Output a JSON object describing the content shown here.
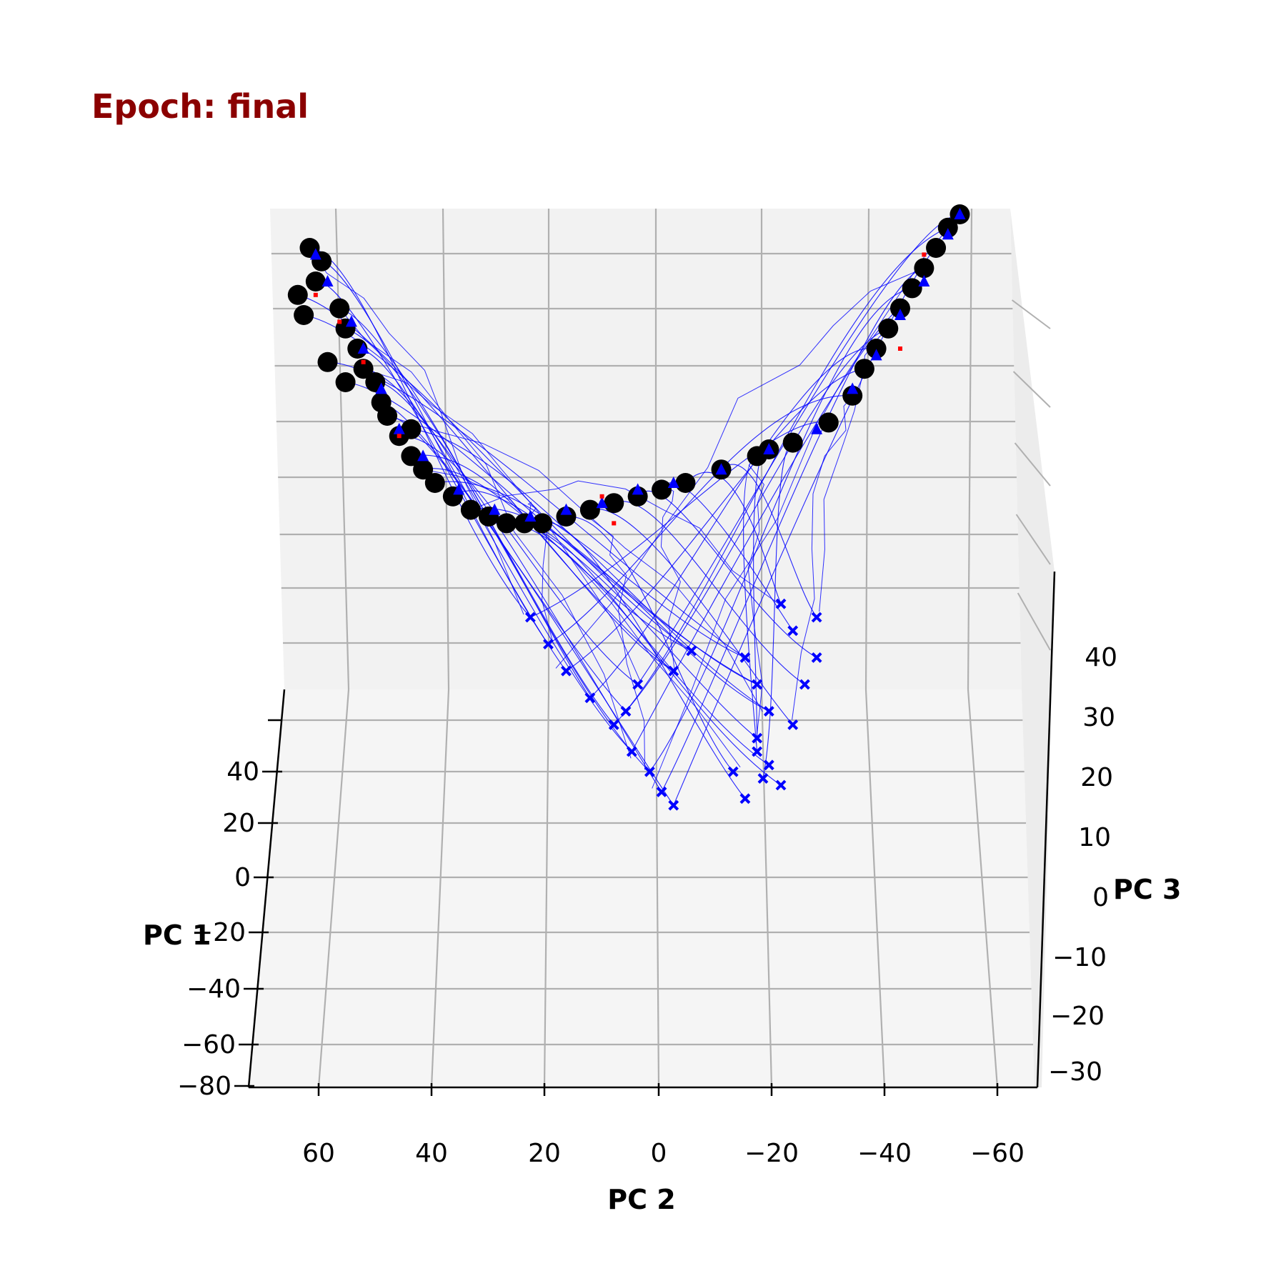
{
  "chart_data": {
    "type": "scatter",
    "title": "Epoch: final",
    "xlabel": "PC 2",
    "ylabel": "PC 1",
    "zlabel": "PC 3",
    "x_ticks": [
      "60",
      "40",
      "20",
      "0",
      "−20",
      "−40",
      "−60"
    ],
    "y_ticks": [
      "40",
      "20",
      "0",
      "−20",
      "−40",
      "−60",
      "−80"
    ],
    "z_ticks": [
      "40",
      "30",
      "20",
      "10",
      "0",
      "−10",
      "−20",
      "−30"
    ],
    "xlim": [
      65,
      -67
    ],
    "ylim": [
      -80,
      50
    ],
    "zlim": [
      -30,
      45
    ],
    "grid": true,
    "colors": {
      "title": "#8b0000",
      "trajectory": "#0000ff",
      "state_marker": "#000000",
      "triangle_marker": "#0000ff",
      "x_marker": "#0000ff",
      "red_marker": "#ff0000",
      "pane": "#f2f2f2",
      "grid": "#b0b0b0"
    },
    "series": [
      {
        "marker": "circle",
        "color": "#000000",
        "points": [
          [
            55,
            45
          ],
          [
            53,
            43
          ],
          [
            54,
            40
          ],
          [
            50,
            36
          ],
          [
            49,
            33
          ],
          [
            47,
            30
          ],
          [
            46,
            27
          ],
          [
            44,
            25
          ],
          [
            43,
            22
          ],
          [
            42,
            20
          ],
          [
            40,
            17
          ],
          [
            38,
            14
          ],
          [
            36,
            12
          ],
          [
            34,
            10
          ],
          [
            31,
            8
          ],
          [
            28,
            6
          ],
          [
            25,
            5
          ],
          [
            22,
            4
          ],
          [
            19,
            4
          ],
          [
            16,
            4
          ],
          [
            12,
            5
          ],
          [
            8,
            6
          ],
          [
            4,
            7
          ],
          [
            0,
            8
          ],
          [
            -4,
            9
          ],
          [
            -8,
            10
          ],
          [
            -14,
            12
          ],
          [
            -20,
            14
          ],
          [
            -26,
            16
          ],
          [
            -32,
            19
          ],
          [
            -36,
            23
          ],
          [
            -38,
            27
          ],
          [
            -40,
            30
          ],
          [
            -42,
            33
          ],
          [
            -44,
            36
          ],
          [
            -46,
            39
          ],
          [
            -48,
            42
          ],
          [
            -50,
            45
          ],
          [
            -52,
            48
          ],
          [
            -54,
            50
          ],
          [
            57,
            38
          ],
          [
            56,
            35
          ],
          [
            52,
            28
          ],
          [
            49,
            25
          ],
          [
            38,
            18
          ],
          [
            -22,
            15
          ]
        ]
      },
      {
        "marker": "triangle",
        "color": "#0000ff",
        "points": [
          [
            54,
            44
          ],
          [
            52,
            40
          ],
          [
            48,
            34
          ],
          [
            46,
            30
          ],
          [
            43,
            24
          ],
          [
            40,
            18
          ],
          [
            36,
            14
          ],
          [
            30,
            9
          ],
          [
            24,
            6
          ],
          [
            18,
            5
          ],
          [
            12,
            6
          ],
          [
            6,
            7
          ],
          [
            0,
            9
          ],
          [
            -6,
            10
          ],
          [
            -14,
            12
          ],
          [
            -22,
            15
          ],
          [
            -30,
            18
          ],
          [
            -36,
            24
          ],
          [
            -40,
            29
          ],
          [
            -44,
            35
          ],
          [
            -48,
            40
          ],
          [
            -52,
            47
          ],
          [
            -54,
            50
          ]
        ]
      },
      {
        "marker": "x",
        "color": "#0000ff",
        "points": [
          [
            18,
            -10
          ],
          [
            15,
            -14
          ],
          [
            12,
            -18
          ],
          [
            8,
            -22
          ],
          [
            4,
            -26
          ],
          [
            1,
            -30
          ],
          [
            -2,
            -33
          ],
          [
            -4,
            -36
          ],
          [
            -6,
            -38
          ],
          [
            2,
            -24
          ],
          [
            0,
            -20
          ],
          [
            -6,
            -18
          ],
          [
            -9,
            -15
          ],
          [
            -18,
            -16
          ],
          [
            -20,
            -20
          ],
          [
            -22,
            -24
          ],
          [
            -20,
            -28
          ],
          [
            -22,
            -32
          ],
          [
            -24,
            -35
          ],
          [
            -18,
            -37
          ],
          [
            -16,
            -33
          ],
          [
            -26,
            -26
          ],
          [
            -28,
            -20
          ],
          [
            -30,
            -16
          ],
          [
            -26,
            -12
          ],
          [
            -24,
            -8
          ],
          [
            -30,
            -10
          ],
          [
            -20,
            -30
          ],
          [
            -21,
            -34
          ]
        ]
      },
      {
        "marker": "red",
        "color": "#ff0000",
        "points": [
          [
            54,
            38
          ],
          [
            50,
            34
          ],
          [
            46,
            28
          ],
          [
            40,
            17
          ],
          [
            6,
            8
          ],
          [
            4,
            4
          ],
          [
            -48,
            44
          ],
          [
            -44,
            30
          ]
        ]
      }
    ]
  }
}
